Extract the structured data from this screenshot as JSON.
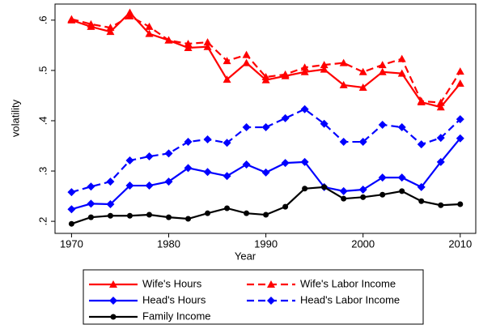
{
  "chart_data": {
    "type": "line",
    "xlabel": "Year",
    "ylabel": "volatility",
    "x": [
      1970,
      1972,
      1974,
      1976,
      1978,
      1980,
      1982,
      1984,
      1986,
      1988,
      1990,
      1992,
      1994,
      1996,
      1998,
      2000,
      2002,
      2004,
      2006,
      2008,
      2010
    ],
    "xlim": [
      1968.3,
      2011.6
    ],
    "xticks": [
      1970,
      1980,
      1990,
      2000,
      2010
    ],
    "ylim": [
      0.176,
      0.632
    ],
    "yticks": [
      {
        "value": 0.2,
        "label": ".2"
      },
      {
        "value": 0.3,
        "label": ".3"
      },
      {
        "value": 0.4,
        "label": ".4"
      },
      {
        "value": 0.5,
        "label": ".5"
      },
      {
        "value": 0.6,
        "label": ".6"
      }
    ],
    "grid": false,
    "legend": "bottom",
    "series": [
      {
        "name": "Wife's Hours",
        "color": "#ff0000",
        "marker": "triangle",
        "dash": false,
        "values": [
          0.6,
          0.587,
          0.577,
          0.615,
          0.573,
          0.56,
          0.545,
          0.547,
          0.482,
          0.515,
          0.481,
          0.489,
          0.497,
          0.502,
          0.471,
          0.466,
          0.497,
          0.494,
          0.437,
          0.427,
          0.474
        ]
      },
      {
        "name": "Wife's Labor Income",
        "color": "#ff0000",
        "marker": "triangle",
        "dash": true,
        "values": [
          0.602,
          0.592,
          0.585,
          0.608,
          0.587,
          0.56,
          0.553,
          0.556,
          0.519,
          0.531,
          0.487,
          0.492,
          0.506,
          0.511,
          0.515,
          0.497,
          0.511,
          0.523,
          0.439,
          0.436,
          0.498
        ]
      },
      {
        "name": "Head's Hours",
        "color": "#0000ff",
        "marker": "diamond",
        "dash": false,
        "values": [
          0.224,
          0.235,
          0.234,
          0.271,
          0.271,
          0.279,
          0.306,
          0.298,
          0.29,
          0.313,
          0.297,
          0.316,
          0.318,
          0.268,
          0.26,
          0.263,
          0.287,
          0.287,
          0.268,
          0.318,
          0.365
        ]
      },
      {
        "name": "Head's Labor Income",
        "color": "#0000ff",
        "marker": "diamond",
        "dash": true,
        "values": [
          0.258,
          0.269,
          0.279,
          0.321,
          0.329,
          0.335,
          0.358,
          0.363,
          0.356,
          0.387,
          0.387,
          0.405,
          0.423,
          0.394,
          0.358,
          0.358,
          0.392,
          0.387,
          0.353,
          0.366,
          0.403
        ]
      },
      {
        "name": "Family Income",
        "color": "#000000",
        "marker": "circle",
        "dash": false,
        "values": [
          0.195,
          0.208,
          0.211,
          0.211,
          0.213,
          0.208,
          0.205,
          0.216,
          0.226,
          0.216,
          0.213,
          0.229,
          0.265,
          0.268,
          0.245,
          0.248,
          0.253,
          0.26,
          0.24,
          0.232,
          0.234
        ]
      }
    ]
  }
}
